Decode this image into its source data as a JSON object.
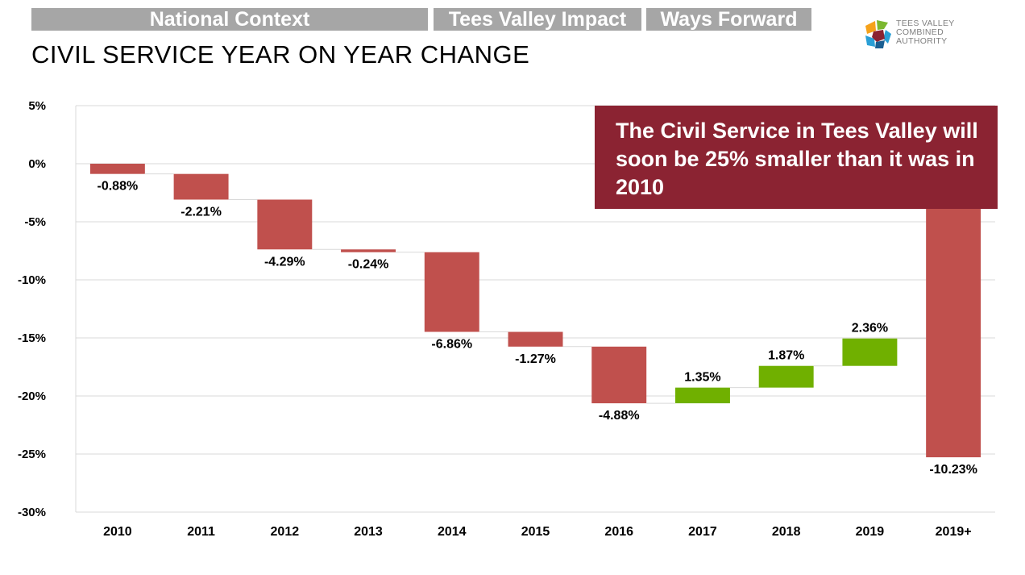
{
  "nav": {
    "tabs": [
      "National Context",
      "Tees Valley Impact",
      "Ways Forward"
    ]
  },
  "page": {
    "title": "CIVIL SERVICE YEAR ON YEAR CHANGE"
  },
  "logo": {
    "lines": [
      "TEES VALLEY",
      "COMBINED",
      "AUTHORITY"
    ],
    "colors": [
      "#f6a21a",
      "#2a9fd6",
      "#1b5f92",
      "#7cb82f",
      "#8b2332"
    ]
  },
  "callout": {
    "text": "The Civil Service in Tees Valley will soon be 25% smaller than it was in 2010"
  },
  "colors": {
    "negative": "#c0504d",
    "positive": "#70b000",
    "callout": "#8b2332",
    "tabs": "#a6a6a6"
  },
  "chart_data": {
    "type": "bar",
    "subtype": "waterfall",
    "categories": [
      "2010",
      "2011",
      "2012",
      "2013",
      "2014",
      "2015",
      "2016",
      "2017",
      "2018",
      "2019",
      "2019+"
    ],
    "values": [
      -0.88,
      -2.21,
      -4.29,
      -0.24,
      -6.86,
      -1.27,
      -4.88,
      1.35,
      1.87,
      2.36,
      -10.23
    ],
    "data_labels": [
      "-0.88%",
      "-2.21%",
      "-4.29%",
      "-0.24%",
      "-6.86%",
      "-1.27%",
      "-4.88%",
      "1.35%",
      "1.87%",
      "2.36%",
      "-10.23%"
    ],
    "ylim": [
      -30,
      5
    ],
    "yticks": [
      5,
      0,
      -5,
      -10,
      -15,
      -20,
      -25,
      -30
    ],
    "ytick_labels": [
      "5%",
      "0%",
      "-5%",
      "-10%",
      "-15%",
      "-20%",
      "-25%",
      "-30%"
    ],
    "grid": true,
    "legend": "none",
    "title": "",
    "xlabel": "",
    "ylabel": ""
  }
}
